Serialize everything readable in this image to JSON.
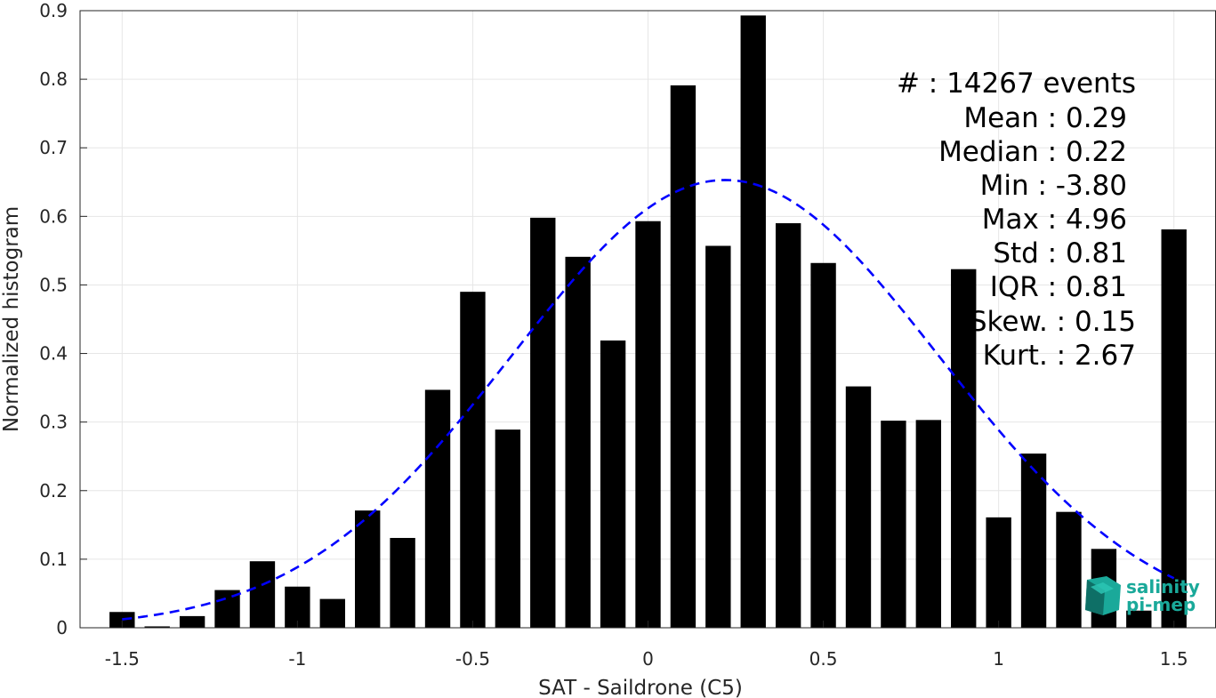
{
  "chart_data": {
    "type": "bar",
    "title": "",
    "xlabel": "SAT - Saildrone (C5)",
    "ylabel": "Normalized histogram",
    "xlim": [
      -1.62,
      1.62
    ],
    "ylim": [
      0,
      0.9
    ],
    "grid": true,
    "bar_color": "#000000",
    "fit_color": "#0000ff",
    "xticks": [
      {
        "value": -1.5,
        "label": "-1.5"
      },
      {
        "value": -1.0,
        "label": "-1"
      },
      {
        "value": -0.5,
        "label": "-0.5"
      },
      {
        "value": 0.0,
        "label": "0"
      },
      {
        "value": 0.5,
        "label": "0.5"
      },
      {
        "value": 1.0,
        "label": "1"
      },
      {
        "value": 1.5,
        "label": "1.5"
      }
    ],
    "yticks": [
      {
        "value": 0,
        "label": "0"
      },
      {
        "value": 0.1,
        "label": "0.1"
      },
      {
        "value": 0.2,
        "label": "0.2"
      },
      {
        "value": 0.3,
        "label": "0.3"
      },
      {
        "value": 0.4,
        "label": "0.4"
      },
      {
        "value": 0.5,
        "label": "0.5"
      },
      {
        "value": 0.6,
        "label": "0.6"
      },
      {
        "value": 0.7,
        "label": "0.7"
      },
      {
        "value": 0.8,
        "label": "0.8"
      },
      {
        "value": 0.9,
        "label": "0.9"
      }
    ],
    "bin_width": 0.1,
    "bins": [
      {
        "x": -1.5,
        "value": 0.023
      },
      {
        "x": -1.4,
        "value": 0.002
      },
      {
        "x": -1.3,
        "value": 0.017
      },
      {
        "x": -1.2,
        "value": 0.055
      },
      {
        "x": -1.1,
        "value": 0.097
      },
      {
        "x": -1.0,
        "value": 0.06
      },
      {
        "x": -0.9,
        "value": 0.042
      },
      {
        "x": -0.8,
        "value": 0.171
      },
      {
        "x": -0.7,
        "value": 0.131
      },
      {
        "x": -0.6,
        "value": 0.347
      },
      {
        "x": -0.5,
        "value": 0.49
      },
      {
        "x": -0.4,
        "value": 0.289
      },
      {
        "x": -0.3,
        "value": 0.598
      },
      {
        "x": -0.2,
        "value": 0.541
      },
      {
        "x": -0.1,
        "value": 0.419
      },
      {
        "x": 0.0,
        "value": 0.593
      },
      {
        "x": 0.1,
        "value": 0.791
      },
      {
        "x": 0.2,
        "value": 0.557
      },
      {
        "x": 0.3,
        "value": 0.893
      },
      {
        "x": 0.4,
        "value": 0.59
      },
      {
        "x": 0.5,
        "value": 0.532
      },
      {
        "x": 0.6,
        "value": 0.352
      },
      {
        "x": 0.7,
        "value": 0.302
      },
      {
        "x": 0.8,
        "value": 0.303
      },
      {
        "x": 0.9,
        "value": 0.523
      },
      {
        "x": 1.0,
        "value": 0.161
      },
      {
        "x": 1.1,
        "value": 0.254
      },
      {
        "x": 1.2,
        "value": 0.169
      },
      {
        "x": 1.3,
        "value": 0.115
      },
      {
        "x": 1.4,
        "value": 0.025
      },
      {
        "x": 1.5,
        "value": 0.581
      }
    ],
    "gaussian_fit": {
      "mean": 0.22,
      "std": 0.61,
      "peak": 0.653,
      "x_range": [
        -1.5,
        1.5
      ]
    }
  },
  "stats": [
    "#  : 14267 events",
    "Mean : 0.29",
    "Median : 0.22",
    "Min : -3.80",
    "Max : 4.96",
    "Std : 0.81",
    "IQR : 0.81",
    "Skew. : 0.15",
    "Kurt. : 2.67"
  ],
  "logo": {
    "line1": "salinity",
    "line2": "pi-mep",
    "color": "#1aa99a",
    "dark_color": "#0e6f66"
  }
}
